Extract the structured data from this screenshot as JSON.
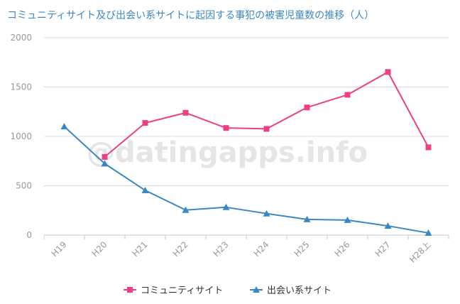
{
  "chart_data": {
    "type": "line",
    "title": "コミュニティサイト及び出会い系サイトに起因する事犯の被害児童数の推移（人）",
    "categories": [
      "H19",
      "H20",
      "H21",
      "H22",
      "H23",
      "H24",
      "H25",
      "H26",
      "H27",
      "H28上"
    ],
    "ylim": [
      0,
      2000
    ],
    "yticks": [
      "0",
      "500",
      "1000",
      "1500",
      "2000"
    ],
    "grid": true,
    "legend_position": "bottom",
    "series": [
      {
        "name": "コミュニティサイト",
        "color": "#ee3e84",
        "marker": "square",
        "values": [
          null,
          792,
          1136,
          1239,
          1085,
          1076,
          1293,
          1421,
          1652,
          889
        ]
      },
      {
        "name": "出会い系サイト",
        "color": "#3b87c4",
        "marker": "triangle",
        "values": [
          1100,
          724,
          453,
          254,
          282,
          218,
          159,
          152,
          93,
          22
        ]
      }
    ]
  },
  "watermark": "@datingapps.info",
  "colors": {
    "title": "#3b87c4",
    "grid": "#dddddd",
    "axis_text": "#999999"
  }
}
